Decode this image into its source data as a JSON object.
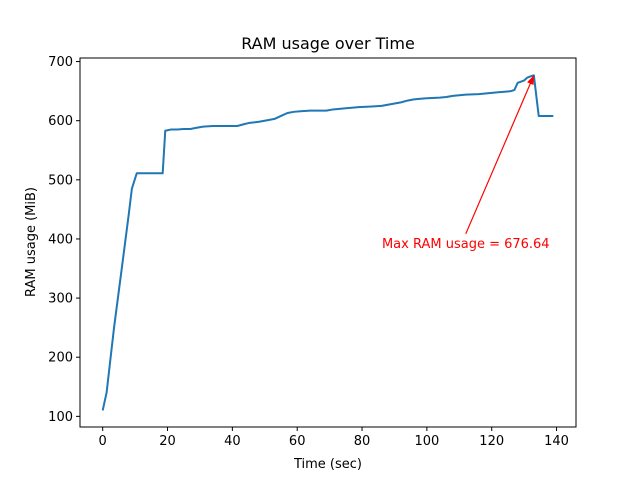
{
  "chart_data": {
    "type": "line",
    "title": "RAM usage over Time",
    "xlabel": "Time (sec)",
    "ylabel": "RAM usage (MiB)",
    "xlim": [
      -7,
      146
    ],
    "ylim": [
      82,
      706
    ],
    "xticks": [
      0,
      20,
      40,
      60,
      80,
      100,
      120,
      140
    ],
    "yticks": [
      100,
      200,
      300,
      400,
      500,
      600,
      700
    ],
    "grid": false,
    "line_color": "#1f77b4",
    "series": [
      {
        "x": [
          0,
          1.2,
          3.5,
          6,
          8,
          9,
          10.5,
          12,
          14,
          16,
          18.5,
          19.3,
          21,
          23,
          25,
          27,
          29,
          31,
          34,
          36,
          38,
          40,
          41.5,
          43.5,
          45,
          48,
          51,
          53,
          55,
          57,
          59,
          61,
          64,
          67,
          69,
          71,
          75,
          79,
          83,
          86,
          89,
          92,
          94,
          96,
          98,
          100,
          104,
          106,
          108,
          110,
          112,
          116,
          118,
          120,
          122,
          124,
          126,
          127,
          128,
          129,
          130,
          131,
          132,
          133,
          134.5,
          136,
          139
        ],
        "y": [
          110,
          140,
          250,
          355,
          440,
          485,
          511,
          511,
          511,
          511,
          511,
          583,
          585,
          585,
          586,
          586,
          588,
          590,
          591,
          591,
          591,
          591,
          591,
          594,
          596,
          598,
          601,
          603,
          608,
          613,
          615,
          616,
          617,
          617,
          617,
          619,
          621,
          623,
          624,
          625,
          628,
          631,
          634,
          636,
          637,
          638,
          639,
          640,
          642,
          643,
          644,
          645,
          646,
          647,
          648,
          649,
          650,
          652,
          664,
          666,
          668,
          673,
          675,
          676.64,
          608,
          608,
          608
        ]
      }
    ],
    "annotation": {
      "text": "Max RAM usage = 676.64",
      "color": "#ff0000",
      "point": [
        133,
        676.64
      ],
      "text_pos": [
        112,
        385
      ]
    }
  }
}
